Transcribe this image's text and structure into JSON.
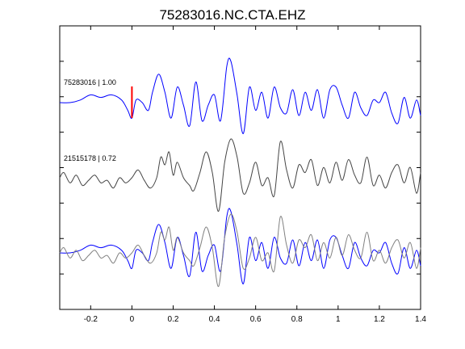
{
  "title": "75283016.NC.CTA.EHZ",
  "colors": {
    "primary": "#0000ff",
    "secondary": "#444444",
    "overlay_secondary": "#808080",
    "pick": "#ff0000",
    "axis": "#000000"
  },
  "chart_data": {
    "type": "line",
    "title": "75283016.NC.CTA.EHZ",
    "xlabel": "",
    "ylabel": "",
    "xlim": [
      -0.35,
      1.4
    ],
    "x_ticks": [
      -0.2,
      0,
      0.2,
      0.4,
      0.6,
      0.8,
      1,
      1.2,
      1.4
    ],
    "x_tick_labels": [
      "-0.2",
      "0",
      "0.2",
      "0.4",
      "0.6",
      "0.8",
      "1",
      "1.2",
      "1.4"
    ],
    "y_ticks": 7,
    "grid": false,
    "pick_marker": {
      "x": 0,
      "color": "#ff0000"
    },
    "annotations": [
      {
        "text": "75283016 | 1.00",
        "trace": 0
      },
      {
        "text": "21515178 | 0.72",
        "trace": 1
      }
    ],
    "series": [
      {
        "id": "trace-75283016",
        "panel": "top",
        "color": "#0000ff",
        "x": [
          -0.35,
          -0.3,
          -0.25,
          -0.2,
          -0.15,
          -0.1,
          -0.05,
          -0.02,
          0,
          0.02,
          0.05,
          0.08,
          0.1,
          0.13,
          0.16,
          0.19,
          0.22,
          0.25,
          0.28,
          0.31,
          0.34,
          0.37,
          0.4,
          0.43,
          0.46,
          0.48,
          0.51,
          0.54,
          0.57,
          0.6,
          0.63,
          0.66,
          0.69,
          0.72,
          0.75,
          0.78,
          0.81,
          0.84,
          0.87,
          0.9,
          0.93,
          0.96,
          0.99,
          1.02,
          1.05,
          1.08,
          1.11,
          1.14,
          1.17,
          1.2,
          1.23,
          1.26,
          1.29,
          1.32,
          1.35,
          1.38,
          1.4
        ],
        "y": [
          0.0,
          0.0,
          0.1,
          0.3,
          0.2,
          0.3,
          0.1,
          -0.3,
          -0.6,
          0.1,
          0.0,
          -0.3,
          0.4,
          1.1,
          0.4,
          -0.6,
          0.6,
          -0.1,
          -0.9,
          0.8,
          -0.7,
          -0.1,
          0.3,
          -0.7,
          1.4,
          1.6,
          0.3,
          -1.2,
          0.6,
          -0.3,
          0.4,
          -0.6,
          0.6,
          -0.2,
          -0.4,
          0.5,
          -0.5,
          0.4,
          -0.3,
          0.5,
          -0.6,
          0.5,
          0.6,
          -0.1,
          -0.6,
          0.4,
          -0.2,
          -0.5,
          0.1,
          0.0,
          0.4,
          -0.4,
          -0.8,
          0.2,
          -0.6,
          0.1,
          -0.5
        ]
      },
      {
        "id": "trace-21515178",
        "panel": "middle",
        "color": "#444444",
        "x": [
          -0.35,
          -0.33,
          -0.3,
          -0.27,
          -0.24,
          -0.21,
          -0.18,
          -0.15,
          -0.12,
          -0.09,
          -0.06,
          -0.03,
          0,
          0.03,
          0.06,
          0.09,
          0.12,
          0.14,
          0.16,
          0.18,
          0.2,
          0.22,
          0.25,
          0.28,
          0.3,
          0.33,
          0.36,
          0.39,
          0.42,
          0.45,
          0.48,
          0.51,
          0.54,
          0.57,
          0.6,
          0.63,
          0.66,
          0.69,
          0.72,
          0.75,
          0.78,
          0.81,
          0.84,
          0.87,
          0.9,
          0.93,
          0.96,
          0.99,
          1.02,
          1.05,
          1.08,
          1.11,
          1.14,
          1.17,
          1.2,
          1.23,
          1.26,
          1.29,
          1.32,
          1.35,
          1.38,
          1.4
        ],
        "y": [
          0.0,
          0.2,
          -0.2,
          0.1,
          -0.3,
          -0.1,
          0.1,
          -0.2,
          -0.1,
          -0.4,
          0.0,
          -0.2,
          0.0,
          0.3,
          -0.1,
          -0.4,
          0.0,
          0.8,
          0.5,
          1.0,
          0.1,
          0.6,
          0.0,
          -0.3,
          -0.5,
          0.2,
          1.0,
          0.2,
          -1.3,
          0.6,
          1.5,
          0.8,
          -0.6,
          -0.2,
          0.6,
          -0.3,
          0.0,
          -0.7,
          1.4,
          0.3,
          -0.4,
          0.5,
          0.2,
          0.7,
          -0.3,
          0.4,
          -0.2,
          0.6,
          -0.1,
          0.7,
          0.1,
          -0.2,
          0.8,
          -0.3,
          0.1,
          -0.4,
          0.2,
          0.5,
          -0.2,
          0.4,
          -0.6,
          0.2
        ]
      },
      {
        "id": "overlay-75283016",
        "panel": "bottom",
        "color": "#0000ff",
        "x": [
          -0.35,
          -0.3,
          -0.25,
          -0.2,
          -0.15,
          -0.1,
          -0.05,
          -0.02,
          0,
          0.02,
          0.05,
          0.08,
          0.1,
          0.13,
          0.16,
          0.19,
          0.22,
          0.25,
          0.28,
          0.31,
          0.34,
          0.37,
          0.4,
          0.43,
          0.46,
          0.48,
          0.51,
          0.54,
          0.57,
          0.6,
          0.63,
          0.66,
          0.69,
          0.72,
          0.75,
          0.78,
          0.81,
          0.84,
          0.87,
          0.9,
          0.93,
          0.96,
          0.99,
          1.02,
          1.05,
          1.08,
          1.11,
          1.14,
          1.17,
          1.2,
          1.23,
          1.26,
          1.29,
          1.32,
          1.35,
          1.38,
          1.4
        ],
        "y": [
          0.0,
          0.0,
          0.1,
          0.3,
          0.2,
          0.3,
          0.1,
          -0.3,
          -0.6,
          0.1,
          0.0,
          -0.3,
          0.4,
          1.1,
          0.4,
          -0.6,
          0.6,
          -0.1,
          -0.9,
          0.8,
          -0.7,
          -0.1,
          0.3,
          -0.7,
          1.4,
          1.6,
          0.3,
          -1.2,
          0.6,
          -0.3,
          0.4,
          -0.6,
          0.6,
          -0.2,
          -0.4,
          0.5,
          -0.5,
          0.4,
          -0.3,
          0.5,
          -0.6,
          0.5,
          0.6,
          -0.1,
          -0.6,
          0.4,
          -0.2,
          -0.5,
          0.1,
          0.0,
          0.4,
          -0.4,
          -0.8,
          0.2,
          -0.6,
          0.1,
          -0.5
        ]
      },
      {
        "id": "overlay-21515178",
        "panel": "bottom",
        "color": "#808080",
        "x": [
          -0.35,
          -0.33,
          -0.3,
          -0.27,
          -0.24,
          -0.21,
          -0.18,
          -0.15,
          -0.12,
          -0.09,
          -0.06,
          -0.03,
          0,
          0.03,
          0.06,
          0.09,
          0.12,
          0.14,
          0.16,
          0.18,
          0.2,
          0.22,
          0.25,
          0.28,
          0.3,
          0.33,
          0.36,
          0.39,
          0.42,
          0.45,
          0.48,
          0.51,
          0.54,
          0.57,
          0.6,
          0.63,
          0.66,
          0.69,
          0.72,
          0.75,
          0.78,
          0.81,
          0.84,
          0.87,
          0.9,
          0.93,
          0.96,
          0.99,
          1.02,
          1.05,
          1.08,
          1.11,
          1.14,
          1.17,
          1.2,
          1.23,
          1.26,
          1.29,
          1.32,
          1.35,
          1.38,
          1.4
        ],
        "y": [
          0.0,
          0.2,
          -0.2,
          0.1,
          -0.3,
          -0.1,
          0.1,
          -0.2,
          -0.1,
          -0.4,
          0.0,
          -0.2,
          0.0,
          0.3,
          -0.1,
          -0.4,
          0.0,
          0.8,
          0.5,
          1.0,
          0.1,
          0.6,
          0.0,
          -0.3,
          -0.5,
          0.2,
          1.0,
          0.2,
          -1.3,
          0.6,
          1.5,
          0.8,
          -0.6,
          -0.2,
          0.6,
          -0.3,
          0.0,
          -0.7,
          1.4,
          0.3,
          -0.4,
          0.5,
          0.2,
          0.7,
          -0.3,
          0.4,
          -0.2,
          0.6,
          -0.1,
          0.7,
          0.1,
          -0.2,
          0.8,
          -0.3,
          0.1,
          -0.4,
          0.2,
          0.5,
          -0.2,
          0.4,
          -0.6,
          0.2
        ]
      }
    ]
  }
}
